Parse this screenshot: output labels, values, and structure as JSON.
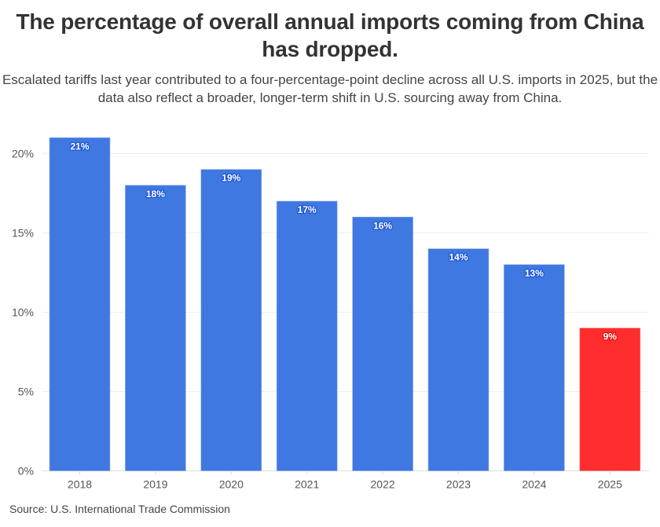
{
  "header": {
    "title": "The percentage of overall annual imports coming from China has dropped.",
    "subtitle": "Escalated tariffs last year contributed to a four-percentage-point decline across all U.S. imports in 2025, but the data also reflect a broader, longer-term shift in U.S. sourcing away from China."
  },
  "footer": {
    "source": "Source: U.S. International Trade Commission"
  },
  "colors": {
    "bar_default": "#3f78e0",
    "bar_highlight": "#ff2d2d",
    "label_outline_default": "#1f56d6",
    "label_outline_highlight": "#e01010",
    "grid": "#eeeeee"
  },
  "chart_data": {
    "type": "bar",
    "title": "The percentage of overall annual imports coming from China has dropped.",
    "xlabel": "",
    "ylabel": "",
    "categories": [
      "2018",
      "2019",
      "2020",
      "2021",
      "2022",
      "2023",
      "2024",
      "2025"
    ],
    "values": [
      21,
      18,
      19,
      17,
      16,
      14,
      13,
      9
    ],
    "value_labels": [
      "21%",
      "18%",
      "19%",
      "17%",
      "16%",
      "14%",
      "13%",
      "9%"
    ],
    "highlight": [
      "2025"
    ],
    "ylim": [
      0,
      21
    ],
    "yticks": [
      0,
      5,
      10,
      15,
      20
    ],
    "ytick_labels": [
      "0%",
      "5%",
      "10%",
      "15%",
      "20%"
    ],
    "grid": true,
    "legend": "none"
  }
}
